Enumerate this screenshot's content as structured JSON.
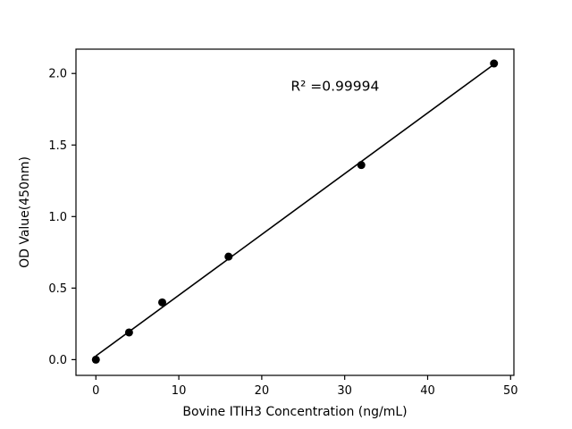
{
  "colors": {
    "background": "#ffffff",
    "axes": "#000000",
    "line": "#000000",
    "marker": "#000000",
    "text": "#000000"
  },
  "chart_data": {
    "type": "scatter",
    "title": "",
    "xlabel": "Bovine ITIH3 Concentration (ng/mL)",
    "ylabel": "OD Value(450nm)",
    "x": [
      0,
      4,
      8,
      16,
      32,
      48
    ],
    "y": [
      0.0,
      0.19,
      0.4,
      0.72,
      1.36,
      2.07
    ],
    "fit_line": {
      "x_start": 0,
      "x_end": 48
    },
    "xlim": [
      -2.4,
      50.4
    ],
    "ylim": [
      -0.11,
      2.17
    ],
    "xticks": {
      "values": [
        0,
        10,
        20,
        30,
        40,
        50
      ],
      "labels": [
        "0",
        "10",
        "20",
        "30",
        "40",
        "50"
      ]
    },
    "yticks": {
      "values": [
        0,
        0.5,
        1,
        1.5,
        2
      ],
      "labels": [
        "0.0",
        "0.5",
        "1.0",
        "1.5",
        "2.0"
      ]
    },
    "annotation": {
      "text": "R² =0.99994",
      "x": 23.5,
      "y": 1.88
    },
    "grid": false,
    "legend": null,
    "marker_size": 4.5
  }
}
